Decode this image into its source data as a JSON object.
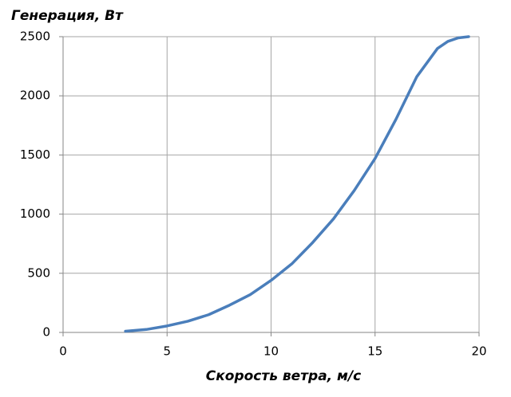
{
  "chart_data": {
    "type": "line",
    "y_label": "Генерация, Вт",
    "x_label": "Скорость ветра, м/с",
    "x": [
      3,
      4,
      5,
      6,
      7,
      8,
      9,
      10,
      11,
      12,
      13,
      14,
      15,
      16,
      17,
      18,
      18.5,
      19,
      19.5
    ],
    "series": [
      {
        "name": "Генерация",
        "color": "#4a7ebb",
        "values": [
          10,
          25,
          55,
          95,
          150,
          230,
          320,
          440,
          580,
          760,
          960,
          1200,
          1470,
          1800,
          2160,
          2400,
          2460,
          2490,
          2500
        ]
      }
    ],
    "xlim": [
      0,
      20
    ],
    "xticks": [
      0,
      5,
      10,
      15,
      20
    ],
    "ylim": [
      0,
      2500
    ],
    "yticks": [
      0,
      500,
      1000,
      1500,
      2000,
      2500
    ],
    "grid": true
  }
}
